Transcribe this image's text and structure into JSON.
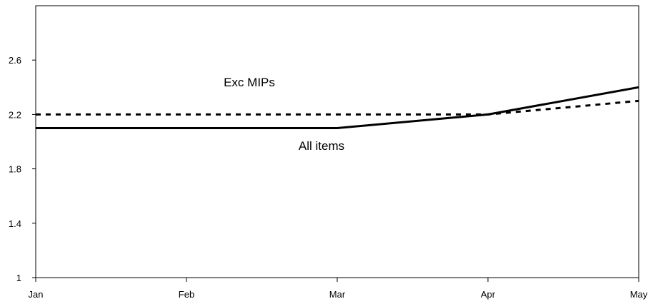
{
  "chart_data": {
    "type": "line",
    "title": "",
    "xlabel": "",
    "ylabel": "",
    "categories": [
      "Jan",
      "Feb",
      "Mar",
      "Apr",
      "May"
    ],
    "y_ticks": [
      "1",
      "1.4",
      "1.8",
      "2.2",
      "2.6"
    ],
    "ylim": [
      1,
      3.0
    ],
    "grid": false,
    "legend": "none",
    "series": [
      {
        "name": "Exc MIPs",
        "values": [
          2.2,
          2.2,
          2.2,
          2.2,
          2.3
        ],
        "style": "dashed",
        "color": "#000000"
      },
      {
        "name": "All items",
        "values": [
          2.1,
          2.1,
          2.1,
          2.2,
          2.4
        ],
        "style": "solid",
        "color": "#000000"
      }
    ]
  }
}
